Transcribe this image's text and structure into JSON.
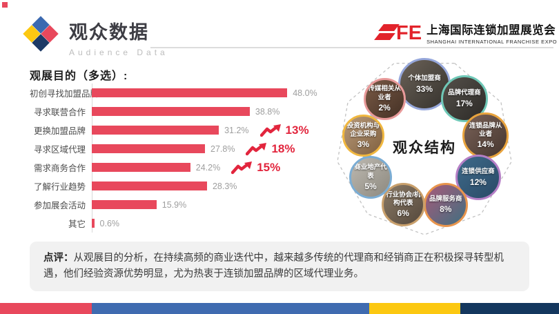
{
  "page": {
    "corner_mark_color": "#e8485c"
  },
  "header": {
    "title": "观众数据",
    "subtitle": "Audience Data",
    "logo_colors": {
      "top": "#3b69b0",
      "left": "#fcc811",
      "right": "#e8485c",
      "bottom": "#1d3a66"
    },
    "brand": {
      "logo_text": "SFE",
      "logo_color": "#e2232b",
      "name_cn": "上海国际连锁加盟展览会",
      "name_en": "SHANGHAI INTERNATIONAL FRANCHISE EXPO"
    }
  },
  "chart_data": [
    {
      "type": "bar",
      "orientation": "horizontal",
      "title": "观展目的（多选）:",
      "categories": [
        "初创寻找加盟品牌",
        "寻求联营合作",
        "更换加盟品牌",
        "寻求区域代理",
        "需求商务合作",
        "了解行业趋势",
        "参加展会活动",
        "其它"
      ],
      "values": [
        48.0,
        38.8,
        31.2,
        27.8,
        24.2,
        28.3,
        15.9,
        0.6
      ],
      "value_labels": [
        "48.0%",
        "38.8%",
        "31.2%",
        "27.8%",
        "24.2%",
        "28.3%",
        "15.9%",
        "0.6%"
      ],
      "growth": [
        null,
        null,
        "13%",
        "18%",
        "15%",
        null,
        null,
        null
      ],
      "bar_color": "#e8485c",
      "growth_color": "#e2253d",
      "xlim": [
        0,
        52
      ],
      "grid": false,
      "legend": false
    },
    {
      "type": "pie",
      "title": "观众结构",
      "legend": false,
      "segments": [
        {
          "label": "个体加盟商",
          "value": 33,
          "value_label": "33%",
          "ring_color": "#96a7db",
          "connector_color": "#bd7cc4",
          "photo": [
            "#6b6258",
            "#35322d"
          ]
        },
        {
          "label": "品牌代理商",
          "value": 17,
          "value_label": "17%",
          "ring_color": "#6fc8b7",
          "connector_color": "#e0579a",
          "photo": [
            "#55504a",
            "#2c2a27"
          ]
        },
        {
          "label": "连锁品牌从业者",
          "value": 14,
          "value_label": "14%",
          "ring_color": "#e8a33d",
          "connector_color": "#ee4d9b",
          "photo": [
            "#7a6258",
            "#45362f"
          ]
        },
        {
          "label": "连锁供应商",
          "value": 12,
          "value_label": "12%",
          "ring_color": "#b57fc6",
          "connector_color": "#d95fae",
          "photo": [
            "#3e6a8a",
            "#2a4a66"
          ]
        },
        {
          "label": "品牌服务商",
          "value": 8,
          "value_label": "8%",
          "ring_color": "#e8954d",
          "connector_color": "#b08fd0",
          "photo": [
            "#a85a7a",
            "#3f6f80"
          ]
        },
        {
          "label": "行业协会/机构代表",
          "value": 6,
          "value_label": "6%",
          "ring_color": "#c9a06c",
          "connector_color": "#9aa8d8",
          "photo": [
            "#8a7a66",
            "#55483c"
          ]
        },
        {
          "label": "商业地产代表",
          "value": 5,
          "value_label": "5%",
          "ring_color": "#7badd4",
          "connector_color": "#7fb3dc",
          "photo": [
            "#bdb9b1",
            "#8d897f"
          ]
        },
        {
          "label": "投资机构与企业采购",
          "value": 3,
          "value_label": "3%",
          "ring_color": "#f0b73f",
          "connector_color": "#8ec6e8",
          "photo": [
            "#b89a7a",
            "#80603f"
          ]
        },
        {
          "label": "传媒相关从业者",
          "value": 2,
          "value_label": "2%",
          "ring_color": "#e89a9a",
          "connector_color": "#9fc3e8",
          "photo": [
            "#7a5a46",
            "#443125"
          ]
        }
      ]
    }
  ],
  "comment": {
    "label": "点评：",
    "text": "从观展目的分析，在持续高频的商业迭代中，越来越多传统的代理商和经销商正在积极探寻转型机遇，他们经验资源优势明显，尤为热衷于连锁加盟品牌的区域代理业务。"
  },
  "footer": {
    "segments": [
      {
        "color": "#e8485c",
        "width_pct": 16.4
      },
      {
        "color": "#3f6bb0",
        "width_pct": 49.7
      },
      {
        "color": "#fcc811",
        "width_pct": 16.3
      },
      {
        "color": "#14375e",
        "width_pct": 17.6
      }
    ]
  }
}
